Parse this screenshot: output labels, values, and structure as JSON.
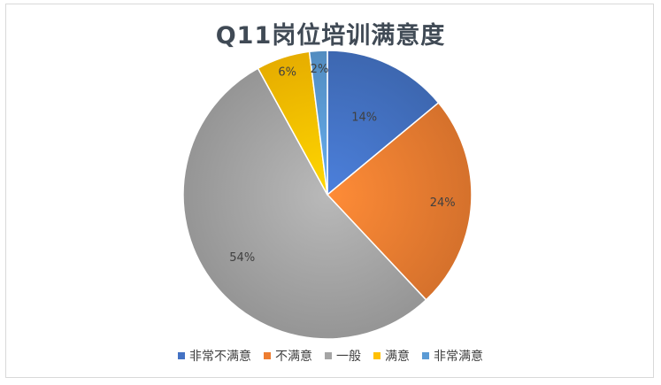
{
  "chart_data": {
    "type": "pie",
    "title": "Q11岗位培训满意度",
    "categories": [
      "非常不满意",
      "不满意",
      "一般",
      "满意",
      "非常满意"
    ],
    "values": [
      14,
      24,
      54,
      6,
      2
    ],
    "labels": [
      "14%",
      "24%",
      "54%",
      "6%",
      "2%"
    ],
    "colors": [
      "#4472c4",
      "#ed7d31",
      "#a5a5a5",
      "#ffc000",
      "#5b9bd5"
    ],
    "start_angle_deg": 0,
    "direction": "clockwise",
    "legend_position": "bottom"
  }
}
